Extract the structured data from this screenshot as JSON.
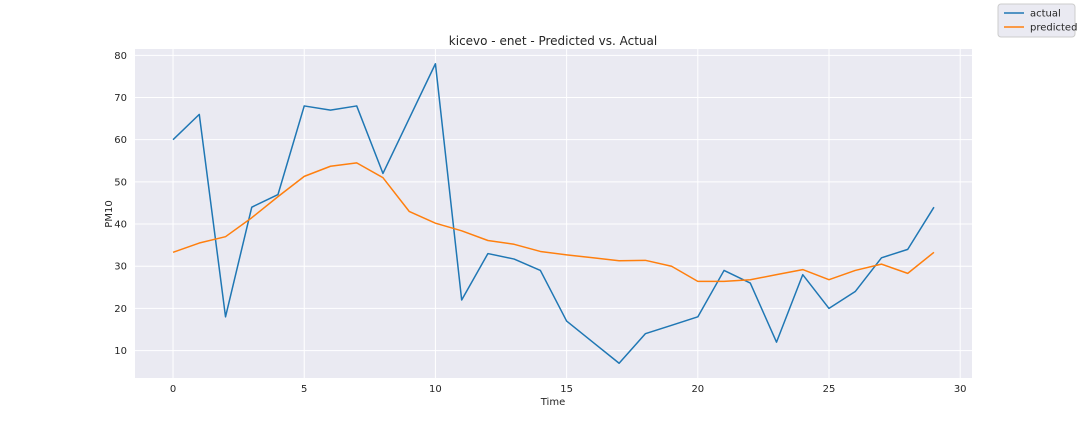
{
  "chart_data": {
    "type": "line",
    "title": "kicevo - enet - Predicted vs. Actual",
    "xlabel": "Time",
    "ylabel": "PM10",
    "xlim": [
      -1.45,
      30.45
    ],
    "ylim": [
      3.5,
      81.5
    ],
    "x_ticks": [
      0,
      5,
      10,
      15,
      20,
      25,
      30
    ],
    "y_ticks": [
      10,
      20,
      30,
      40,
      50,
      60,
      70,
      80
    ],
    "grid": true,
    "legend_position": "top-right",
    "background_color": "#eaeaf2",
    "grid_color": "#ffffff",
    "x": [
      0,
      1,
      2,
      3,
      4,
      5,
      6,
      7,
      8,
      9,
      10,
      11,
      12,
      13,
      14,
      15,
      16,
      17,
      18,
      19,
      20,
      21,
      22,
      23,
      24,
      25,
      26,
      27,
      28,
      29
    ],
    "series": [
      {
        "name": "actual",
        "color": "#1f77b4",
        "values": [
          60,
          66,
          18,
          44,
          47,
          68,
          67,
          68,
          52,
          65,
          78,
          22,
          33,
          31.7,
          29,
          17,
          12,
          7,
          14,
          16,
          18,
          29,
          26,
          12,
          28,
          20,
          24,
          32,
          34,
          44
        ]
      },
      {
        "name": "predicted",
        "color": "#ff7f0e",
        "values": [
          33.3,
          35.5,
          37,
          41.5,
          46.5,
          51.3,
          53.7,
          54.5,
          51,
          43,
          40.2,
          38.4,
          36.1,
          35.2,
          33.5,
          32.7,
          32,
          31.3,
          31.4,
          30,
          26.4,
          26.4,
          26.8,
          28,
          29.2,
          26.8,
          29,
          30.5,
          28.3,
          33.3
        ]
      }
    ]
  }
}
